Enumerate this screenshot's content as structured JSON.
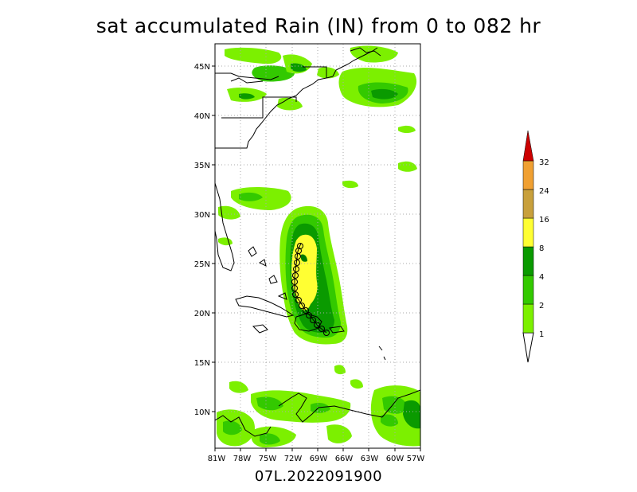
{
  "title": "sat accumulated Rain (IN) from 0 to 082 hr",
  "storm_id": "07L.2022091900",
  "map": {
    "lat_labels": [
      "45N",
      "40N",
      "35N",
      "30N",
      "25N",
      "20N",
      "15N",
      "10N"
    ],
    "lon_labels": [
      "81W",
      "78W",
      "75W",
      "72W",
      "69W",
      "66W",
      "63W",
      "60W",
      "57W"
    ],
    "grid": true
  },
  "colorbar": {
    "units": "IN",
    "levels": [
      "1",
      "2",
      "4",
      "8",
      "16",
      "24",
      "32"
    ],
    "colors": [
      "#7cf000",
      "#33c900",
      "#0a9a00",
      "#007a00",
      "#ffff33",
      "#c8a03c",
      "#f0a032",
      "#cc0000"
    ]
  }
}
